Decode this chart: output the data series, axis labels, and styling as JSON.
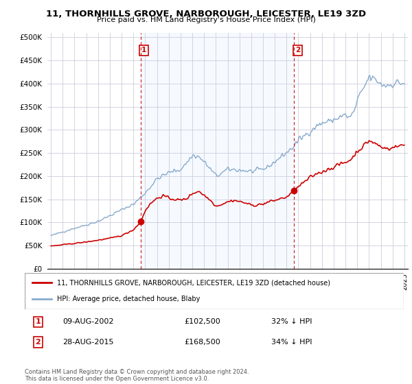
{
  "title": "11, THORNHILLS GROVE, NARBOROUGH, LEICESTER, LE19 3ZD",
  "subtitle": "Price paid vs. HM Land Registry's House Price Index (HPI)",
  "ylabel_ticks": [
    "£0",
    "£50K",
    "£100K",
    "£150K",
    "£200K",
    "£250K",
    "£300K",
    "£350K",
    "£400K",
    "£450K",
    "£500K"
  ],
  "ytick_values": [
    0,
    50000,
    100000,
    150000,
    200000,
    250000,
    300000,
    350000,
    400000,
    450000,
    500000
  ],
  "xlim_start": 1994.7,
  "xlim_end": 2025.3,
  "ylim": [
    0,
    510000
  ],
  "sale1_x": 2002.6,
  "sale1_y": 102500,
  "sale2_x": 2015.65,
  "sale2_y": 168500,
  "shade_color": "#ddeeff",
  "legend_house": "11, THORNHILLS GROVE, NARBOROUGH, LEICESTER, LE19 3ZD (detached house)",
  "legend_hpi": "HPI: Average price, detached house, Blaby",
  "note1_date": "09-AUG-2002",
  "note1_price": "£102,500",
  "note1_hpi": "32% ↓ HPI",
  "note2_date": "28-AUG-2015",
  "note2_price": "£168,500",
  "note2_hpi": "34% ↓ HPI",
  "footer": "Contains HM Land Registry data © Crown copyright and database right 2024.\nThis data is licensed under the Open Government Licence v3.0.",
  "house_color": "#cc0000",
  "hpi_color": "#88aacc",
  "vline_color": "#cc0000",
  "background_color": "#ffffff",
  "grid_color": "#ccccdd"
}
